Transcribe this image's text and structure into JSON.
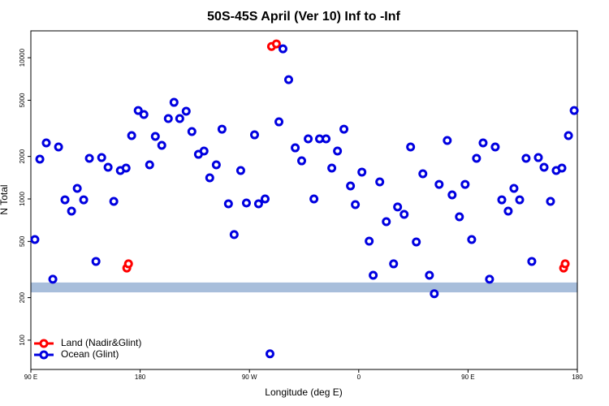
{
  "chart_data": {
    "type": "scatter",
    "title": "50S-45S April (Ver 10)   Inf to -Inf",
    "x_label": "Longitude (deg E)",
    "y_label": "N Total",
    "log_y": true,
    "legend": "bottom-left",
    "band": [
      218,
      256
    ],
    "band_color": "#a8bedb",
    "xlim": [
      90,
      540
    ],
    "xticks": [
      {
        "value": 90,
        "label": "90 E"
      },
      180,
      {
        "value": 270,
        "label": "90 W"
      },
      {
        "value": 360,
        "label": "0"
      },
      {
        "value": 450,
        "label": "90 E"
      },
      {
        "value": 540,
        "label": "180"
      }
    ],
    "ylim": [
      62,
      15500
    ],
    "yticks": [
      100,
      200,
      500,
      1000,
      2000,
      5000,
      10000
    ],
    "series": [
      {
        "name": "Land (Nadir&Glint)",
        "color": "#ff0000",
        "x": [
          169.0,
          170.4,
          288.2,
          292.2,
          528.7,
          530.0
        ],
        "values": [
          324,
          347,
          12020,
          12530,
          324,
          347
        ]
      },
      {
        "name": "Ocean (Glint)",
        "color": "#0000e0",
        "x": [
          93.3,
          97.4,
          102.7,
          108.1,
          112.8,
          118.1,
          123.5,
          128.2,
          133.5,
          138.2,
          143.6,
          148.3,
          153.6,
          158.3,
          163.7,
          168.4,
          173.0,
          178.4,
          183.1,
          187.8,
          192.5,
          197.8,
          203.2,
          207.9,
          212.6,
          217.9,
          222.6,
          228.0,
          232.6,
          237.3,
          242.7,
          247.4,
          252.7,
          257.4,
          262.8,
          267.5,
          274.2,
          277.5,
          282.9,
          286.9,
          294.3,
          297.6,
          302.3,
          307.7,
          313.0,
          318.4,
          323.1,
          327.7,
          333.1,
          337.8,
          342.5,
          347.8,
          353.2,
          357.2,
          362.6,
          368.6,
          371.9,
          377.3,
          382.7,
          388.7,
          392.0,
          397.4,
          402.7,
          407.4,
          412.8,
          418.2,
          422.2,
          426.2,
          432.9,
          436.9,
          442.9,
          447.6,
          453.0,
          457.0,
          462.4,
          467.7,
          472.4,
          477.8,
          483.1,
          487.8,
          492.5,
          497.8,
          502.5,
          507.9,
          512.6,
          517.9,
          522.6,
          527.3,
          532.7,
          537.4
        ],
        "values": [
          516,
          1913,
          2494,
          270,
          2333,
          986,
          820,
          1188,
          986,
          1938,
          361,
          1963,
          1675,
          961,
          1589,
          1653,
          2808,
          4229,
          3963,
          1743,
          2771,
          2395,
          3707,
          4830,
          3707,
          4177,
          3000,
          2070,
          2183,
          1411,
          1743,
          3120,
          924,
          559,
          1589,
          936,
          2844,
          924,
          1000,
          80,
          3515,
          11570,
          6995,
          2301,
          1862,
          2663,
          1000,
          2663,
          2663,
          1653,
          2183,
          3120,
          1236,
          912,
          1549,
          502,
          288,
          1321,
          690,
          347,
          877,
          778,
          2333,
          496,
          1507,
          288,
          213,
          1268,
          2594,
          1068,
          747,
          1268,
          516,
          1938,
          2494,
          270,
          2333,
          986,
          820,
          1188,
          986,
          1938,
          361,
          1963,
          1675,
          961,
          1589,
          1653,
          2808,
          4229
        ]
      }
    ]
  }
}
